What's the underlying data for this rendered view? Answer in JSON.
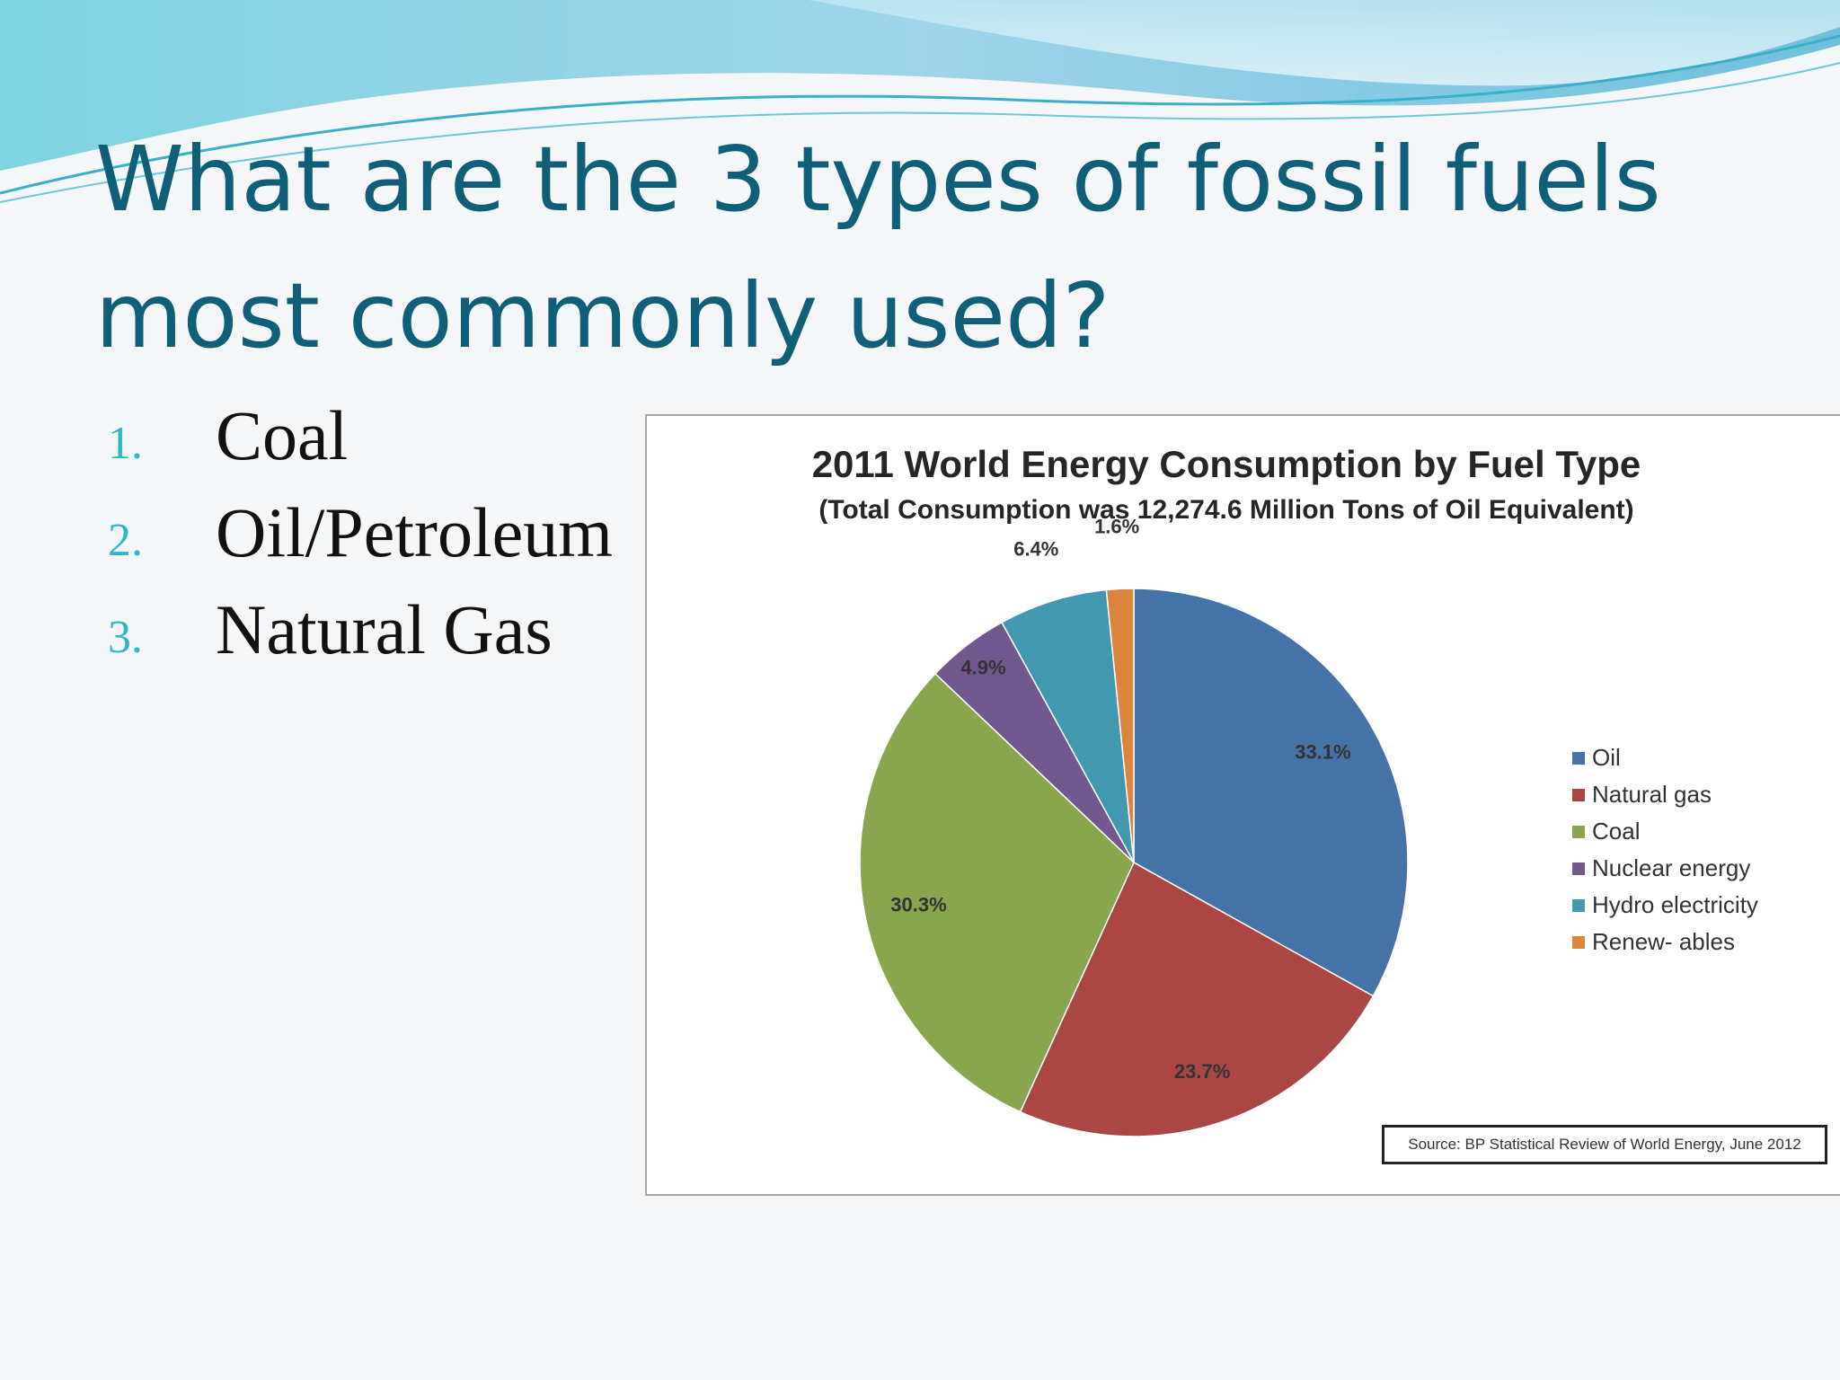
{
  "slide": {
    "title_lines": [
      "What are the 3 types of fossil fuels",
      "most commonly used?"
    ],
    "list": [
      {
        "number": "1.",
        "text": "Coal"
      },
      {
        "number": "2.",
        "text": "Oil/Petroleum"
      },
      {
        "number": "3.",
        "text": "Natural Gas"
      }
    ]
  },
  "chart_data": {
    "type": "pie",
    "title": "2011 World Energy Consumption by Fuel Type",
    "subtitle": "(Total Consumption was 12,274.6 Million Tons of Oil Equivalent)",
    "labels": [
      "Oil",
      "Natural gas",
      "Coal",
      "Nuclear energy",
      "Hydro electricity",
      "Renew- ables"
    ],
    "values": [
      33.1,
      23.7,
      30.3,
      4.9,
      6.4,
      1.6
    ],
    "value_labels": [
      "33.1%",
      "23.7%",
      "30.3%",
      "4.9%",
      "6.4%",
      "1.6%"
    ],
    "colors": [
      "#4572a7",
      "#aa4643",
      "#89a54e",
      "#71588f",
      "#4198af",
      "#db843d"
    ],
    "legend_position": "right",
    "source": "Source:  BP Statistical Review of World Energy, June 2012"
  }
}
